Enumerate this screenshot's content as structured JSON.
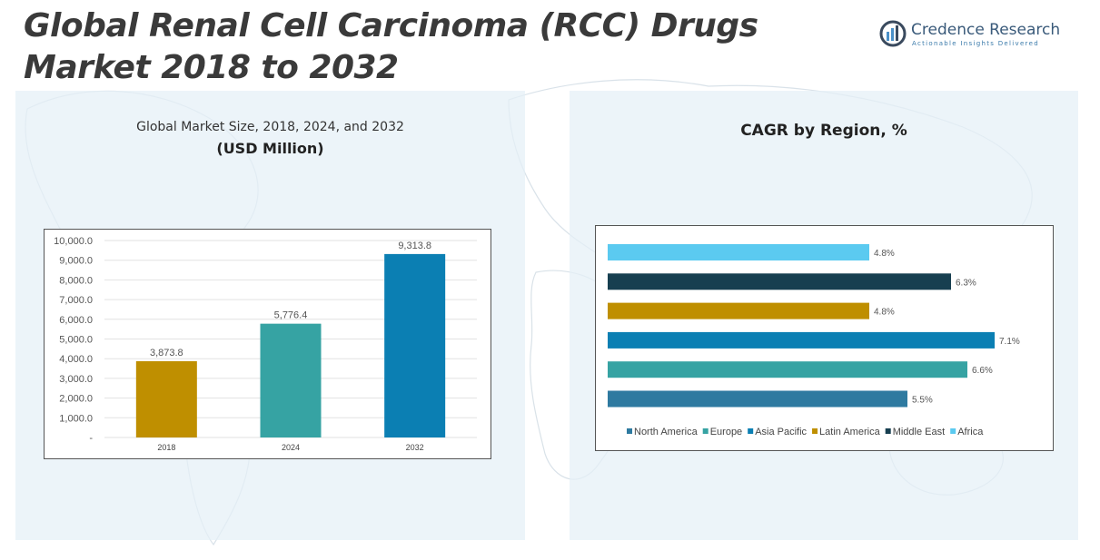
{
  "header": {
    "title_line1": "Global Renal Cell Carcinoma (RCC) Drugs",
    "title_line2": "Market 2018 to 2032"
  },
  "logo": {
    "name": "Credence Research",
    "tagline": "Actionable Insights Delivered",
    "icon": "credence-logo-icon",
    "colors": {
      "dark": "#3a4a5e",
      "accent": "#4a90c8"
    }
  },
  "left_panel": {
    "title": "Global Market Size, 2018, 2024, and 2032",
    "unit": "(USD Million)"
  },
  "right_panel": {
    "title": "CAGR by Region, %"
  },
  "chart_data": [
    {
      "type": "bar",
      "title": "Global Market Size, 2018, 2024, and 2032",
      "subtitle": "(USD Million)",
      "categories": [
        "2018",
        "2024",
        "2032"
      ],
      "values": [
        3873.8,
        5776.4,
        9313.8
      ],
      "value_labels": [
        "3,873.8",
        "5,776.4",
        "9,313.8"
      ],
      "colors": [
        "#bf8f00",
        "#36a3a3",
        "#0b7fb3"
      ],
      "ylim": [
        0,
        10000
      ],
      "yticks": [
        0,
        1000,
        2000,
        3000,
        4000,
        5000,
        6000,
        7000,
        8000,
        9000,
        10000
      ],
      "ytick_labels": [
        "-",
        "1,000.0",
        "2,000.0",
        "3,000.0",
        "4,000.0",
        "5,000.0",
        "6,000.0",
        "7,000.0",
        "8,000.0",
        "9,000.0",
        "10,000.0"
      ],
      "grid": true
    },
    {
      "type": "bar",
      "orientation": "horizontal",
      "title": "CAGR by Region, %",
      "series": [
        {
          "name": "North America",
          "value": 5.5,
          "label": "5.5%",
          "color": "#2e7aa0"
        },
        {
          "name": "Europe",
          "value": 6.6,
          "label": "6.6%",
          "color": "#36a3a3"
        },
        {
          "name": "Asia Pacific",
          "value": 7.1,
          "label": "7.1%",
          "color": "#0b7fb3"
        },
        {
          "name": "Latin America",
          "value": 4.8,
          "label": "4.8%",
          "color": "#bf8f00"
        },
        {
          "name": "Middle East",
          "value": 6.3,
          "label": "6.3%",
          "color": "#173f50"
        },
        {
          "name": "Africa",
          "value": 4.8,
          "label": "4.8%",
          "color": "#5bcaf0"
        }
      ],
      "xlim": [
        0,
        7.1
      ],
      "legend_position": "bottom",
      "grid": false
    }
  ]
}
